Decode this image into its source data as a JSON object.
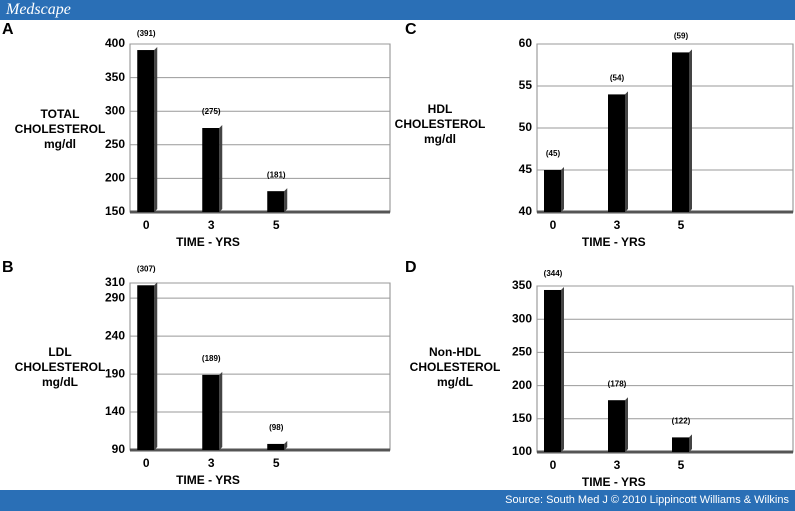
{
  "header": {
    "logo": "Medscape"
  },
  "footer": {
    "source": "Source: South Med J © 2010 Lippincott Williams & Wilkins"
  },
  "chart_data": [
    {
      "type": "bar",
      "panel": "A",
      "ylabel": [
        "TOTAL",
        "CHOLESTEROL",
        "mg/dl"
      ],
      "xlabel": "TIME - YRS",
      "categories": [
        "0",
        "3",
        "5"
      ],
      "values": [
        391,
        275,
        181
      ],
      "value_labels": [
        "(391)",
        "(275)",
        "(181)"
      ],
      "color": "#000000",
      "ylim": [
        150,
        400
      ],
      "yticks": [
        150,
        200,
        250,
        300,
        350,
        400
      ],
      "grid": true
    },
    {
      "type": "bar",
      "panel": "C",
      "ylabel": [
        "HDL",
        "CHOLESTEROL",
        "mg/dl"
      ],
      "xlabel": "TIME - YRS",
      "categories": [
        "0",
        "3",
        "5"
      ],
      "values": [
        45,
        54,
        59
      ],
      "value_labels": [
        "(45)",
        "(54)",
        "(59)"
      ],
      "color": "#000000",
      "ylim": [
        40,
        60
      ],
      "yticks": [
        40,
        45,
        50,
        55,
        60
      ],
      "grid": true
    },
    {
      "type": "bar",
      "panel": "B",
      "ylabel": [
        "LDL",
        "CHOLESTEROL",
        "mg/dL"
      ],
      "xlabel": "TIME - YRS",
      "categories": [
        "0",
        "3",
        "5"
      ],
      "values": [
        307,
        189,
        98
      ],
      "value_labels": [
        "(307)",
        "(189)",
        "(98)"
      ],
      "color": "#000000",
      "ylim": [
        90,
        310
      ],
      "yticks": [
        90,
        140,
        190,
        240,
        290,
        310
      ],
      "grid": true
    },
    {
      "type": "bar",
      "panel": "D",
      "ylabel": [
        "Non-HDL",
        "CHOLESTEROL",
        "mg/dL"
      ],
      "xlabel": "TIME - YRS",
      "categories": [
        "0",
        "3",
        "5"
      ],
      "values": [
        344,
        178,
        122
      ],
      "value_labels": [
        "(344)",
        "(178)",
        "(122)"
      ],
      "color": "#000000",
      "ylim": [
        100,
        350
      ],
      "yticks": [
        100,
        150,
        200,
        250,
        300,
        350
      ],
      "grid": true
    }
  ]
}
